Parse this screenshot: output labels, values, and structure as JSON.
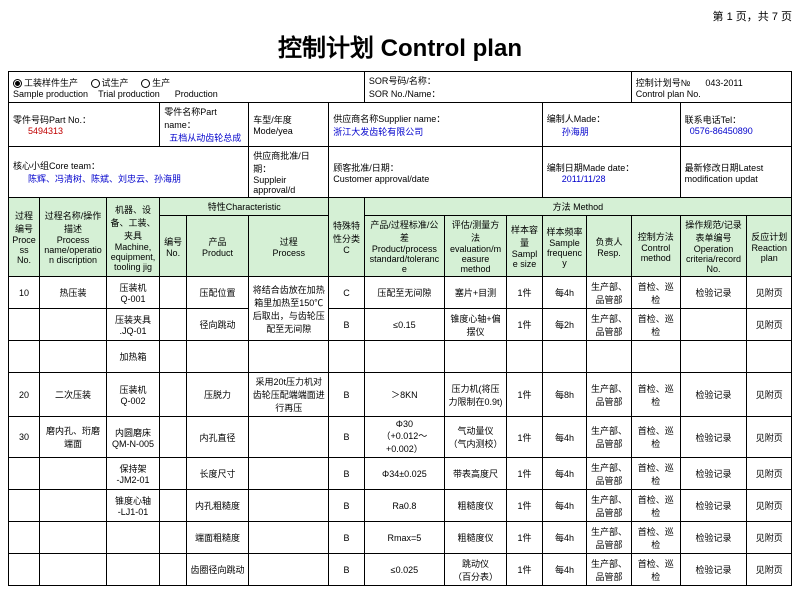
{
  "page_info": "第 1 页，共 7 页",
  "title": "控制计划 Control plan",
  "top": {
    "r1": {
      "opt1": "工装样件生产",
      "opt2": "试生产",
      "opt3": "生产",
      "sor_lbl": "SOR号码/名称：",
      "sor_name": "SOR No./Name：",
      "cp_lbl": "控制计划号№",
      "cp_no": "043-2011",
      "cp_en": "Control plan No."
    },
    "r1b": {
      "sp": "Sample production",
      "tp": "Trial production",
      "pr": "Production"
    },
    "r2": {
      "pn_lbl": "零件号码Part No.：",
      "pn": "5494313",
      "pname_lbl": "零件名称Part name：",
      "pname": "五档从动齿轮总成",
      "mode_lbl": "车型/年度Mode/yea",
      "sup_lbl": "供应商名称Supplier name：",
      "sup": "浙江大发齿轮有限公司",
      "made_lbl": "编制人Made：",
      "made": "孙海朋",
      "tel_lbl": "联系电话Tel：",
      "tel": "0576-86450890"
    },
    "r3": {
      "team_lbl": "核心小组Core team：",
      "team": "陈辉、冯清树、陈斌、刘忠云、孙海朋",
      "sa_lbl": "供应商批准/日期：",
      "sa_en": "Suppleir approval/d",
      "ca_lbl": "顾客批准/日期：",
      "ca_en": "Customer approval/date",
      "md_lbl": "编制日期Made date：",
      "md": "2011/11/28",
      "lm_lbl": "最新修改日期Latest modification updat"
    }
  },
  "cols": {
    "c1": "过程编号\nProcess No.",
    "c2": "过程名称/操作描述\nProcess name/operation discription",
    "c3": "机器、设备、工装、夹具Machine, equipment, tooling jig",
    "char": "特性Characteristic",
    "c4": "编号\nNo.",
    "c5": "产品\nProduct",
    "c6": "过程\nProcess",
    "c7": "特殊特性分类C",
    "meth": "方法 Method",
    "c8": "产品/过程标准/公差\nProduct/process standard/tolerance",
    "c9": "评估/测量方法\nevaluation/measure method",
    "c10": "样本容量\nSample size",
    "c11": "样本频率\nSample frequency",
    "c12": "负责人\nResp.",
    "c13": "控制方法\nControl method",
    "c14": "操作规范/记录表单编号\nOperation criteria/record No.",
    "c15": "反应计划\nReaction plan"
  },
  "rows": [
    {
      "no": "10",
      "op": "热压装",
      "mach": "压装机\nQ-001",
      "prod": "压配位置",
      "proc": "将结合齿放在加热箱里加热至150℃后取出，与齿轮压配至无间隙",
      "cls": "C",
      "std": "压配至无间隙",
      "eval": "塞片+目测",
      "sz": "1件",
      "fq": "每4h",
      "rsp": "生产部、品管部",
      "cm": "首检、巡检",
      "rec": "检验记录",
      "rp": "见附页"
    },
    {
      "no": "",
      "op": "",
      "mach": "压装夹具\n.JQ-01",
      "prod": "径向跳动",
      "proc": "",
      "cls": "B",
      "std": "≤0.15",
      "eval": "锥度心轴+偏摆仪",
      "sz": "1件",
      "fq": "每2h",
      "rsp": "生产部、品管部",
      "cm": "首检、巡检",
      "rec": "",
      "rp": "见附页"
    },
    {
      "no": "",
      "op": "",
      "mach": "加热箱",
      "prod": "",
      "proc": "",
      "cls": "",
      "std": "",
      "eval": "",
      "sz": "",
      "fq": "",
      "rsp": "",
      "cm": "",
      "rec": "",
      "rp": ""
    },
    {
      "no": "20",
      "op": "二次压装",
      "mach": "压装机\nQ-002",
      "prod": "压脱力",
      "proc": "采用20t压力机对齿轮压配端端面进行再压",
      "cls": "B",
      "std": "＞8KN",
      "eval": "压力机(将压力限制在0.9t)",
      "sz": "1件",
      "fq": "每8h",
      "rsp": "生产部、品管部",
      "cm": "首检、巡检",
      "rec": "检验记录",
      "rp": "见附页"
    },
    {
      "no": "30",
      "op": "磨内孔、珩磨端面",
      "mach": "内圆磨床\nQM-N-005",
      "prod": "内孔直径",
      "proc": "",
      "cls": "B",
      "std": "Φ30\n（+0.012～+0.002）",
      "eval": "气动量仪\n（气内测校）",
      "sz": "1件",
      "fq": "每4h",
      "rsp": "生产部、品管部",
      "cm": "首检、巡检",
      "rec": "检验记录",
      "rp": "见附页"
    },
    {
      "no": "",
      "op": "",
      "mach": "保持架\n-JM2-01",
      "prod": "长度尺寸",
      "proc": "",
      "cls": "B",
      "std": "Φ34±0.025",
      "eval": "带表高度尺",
      "sz": "1件",
      "fq": "每4h",
      "rsp": "生产部、品管部",
      "cm": "首检、巡检",
      "rec": "检验记录",
      "rp": "见附页"
    },
    {
      "no": "",
      "op": "",
      "mach": "锥度心轴\n-LJ1-01",
      "prod": "内孔粗糙度",
      "proc": "",
      "cls": "B",
      "std": "Ra0.8",
      "eval": "粗糙度仪",
      "sz": "1件",
      "fq": "每4h",
      "rsp": "生产部、品管部",
      "cm": "首检、巡检",
      "rec": "检验记录",
      "rp": "见附页"
    },
    {
      "no": "",
      "op": "",
      "mach": "",
      "prod": "端面粗糙度",
      "proc": "",
      "cls": "B",
      "std": "Rmax=5",
      "eval": "粗糙度仪",
      "sz": "1件",
      "fq": "每4h",
      "rsp": "生产部、品管部",
      "cm": "首检、巡检",
      "rec": "检验记录",
      "rp": "见附页"
    },
    {
      "no": "",
      "op": "",
      "mach": "",
      "prod": "齿圈径向跳动",
      "proc": "",
      "cls": "B",
      "std": "≤0.025",
      "eval": "跳动仪\n（百分表）",
      "sz": "1件",
      "fq": "每4h",
      "rsp": "生产部、品管部",
      "cm": "首检、巡检",
      "rec": "检验记录",
      "rp": "见附页"
    }
  ]
}
